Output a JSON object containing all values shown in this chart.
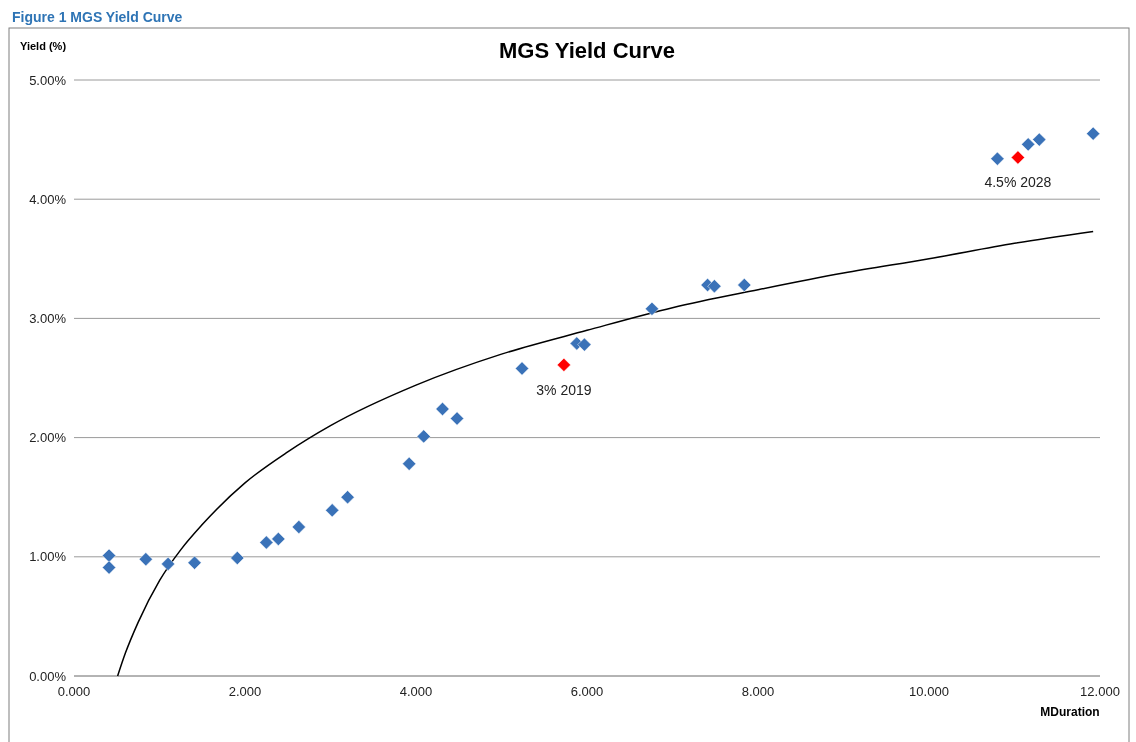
{
  "chart_data": {
    "type": "scatter",
    "title": "MGS Yield Curve",
    "xlabel": "MDuration",
    "ylabel": "Yield (%)",
    "annotations": [
      "Figure 1 MGS Yield Curve",
      {
        "text": "3% 2019",
        "x": 5.73,
        "y": 2.61
      },
      {
        "text": "4.5% 2028",
        "x": 11.04,
        "y": 4.35
      }
    ],
    "xlim": [
      0,
      12
    ],
    "ylim": [
      0,
      5
    ],
    "xticks": [
      {
        "value": 0,
        "label": "0.000"
      },
      {
        "value": 2,
        "label": "2.000"
      },
      {
        "value": 4,
        "label": "4.000"
      },
      {
        "value": 6,
        "label": "6.000"
      },
      {
        "value": 8,
        "label": "8.000"
      },
      {
        "value": 10,
        "label": "10.000"
      },
      {
        "value": 12,
        "label": "12.000"
      }
    ],
    "yticks": [
      {
        "value": 0,
        "label": "0.00%"
      },
      {
        "value": 1,
        "label": "1.00%"
      },
      {
        "value": 2,
        "label": "2.00%"
      },
      {
        "value": 3,
        "label": "3.00%"
      },
      {
        "value": 4,
        "label": "4.00%"
      },
      {
        "value": 5,
        "label": "5.00%"
      }
    ],
    "grid": "y",
    "marker": "diamond",
    "series": [
      {
        "type": "line",
        "color": "#000000",
        "marker": "none",
        "line_style": "solid",
        "x": [
          0.51,
          0.6,
          0.75,
          1.0,
          1.25,
          1.5,
          2,
          2.5,
          3,
          4,
          5,
          6,
          7,
          8,
          9,
          10,
          11,
          11.92
        ],
        "values": [
          0,
          0.19,
          0.45,
          0.8,
          1.06,
          1.27,
          1.62,
          1.88,
          2.1,
          2.44,
          2.7,
          2.9,
          3.09,
          3.24,
          3.38,
          3.5,
          3.63,
          3.73
        ]
      },
      {
        "color": "#3a72b8",
        "x": [
          0.41,
          0.41,
          0.84,
          1.1,
          1.41,
          1.91,
          2.25,
          2.39,
          2.63,
          3.02,
          3.2,
          3.92,
          4.09,
          4.31,
          4.48,
          5.24,
          5.88,
          5.97,
          6.76,
          7.41,
          7.49,
          7.84,
          10.8,
          11.16,
          11.29,
          11.92
        ],
        "values": [
          1.01,
          0.91,
          0.98,
          0.94,
          0.95,
          0.99,
          1.12,
          1.15,
          1.25,
          1.39,
          1.5,
          1.78,
          2.01,
          2.24,
          2.16,
          2.58,
          2.79,
          2.78,
          3.08,
          3.28,
          3.27,
          3.28,
          4.34,
          4.46,
          4.5,
          4.55
        ]
      },
      {
        "color": "#ff0000",
        "x": [
          5.73,
          11.04
        ],
        "values": [
          2.61,
          4.35
        ]
      }
    ]
  }
}
